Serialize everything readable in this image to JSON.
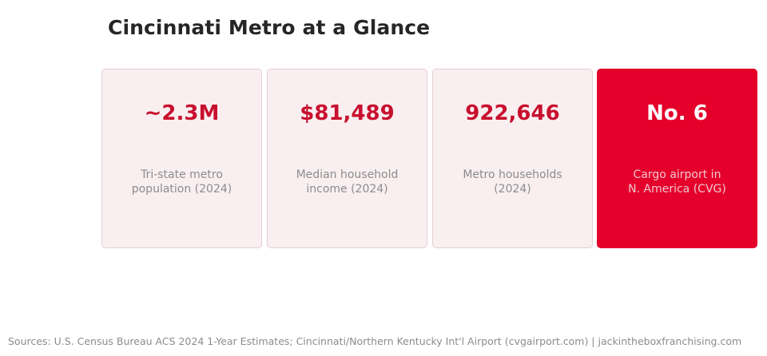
{
  "title": "Cincinnati Metro at a Glance",
  "cards": [
    {
      "value": "~2.3M",
      "label_lines": [
        "Tri-state metro",
        "population (2024)"
      ]
    },
    {
      "value": "$81,489",
      "label_lines": [
        "Median household",
        "income (2024)"
      ]
    },
    {
      "value": "922,646",
      "label_lines": [
        "Metro households",
        "(2024)"
      ]
    },
    {
      "value": "No. 6",
      "label_lines": [
        "Cargo airport in",
        "N. America (CVG)"
      ]
    }
  ],
  "footer": "Sources: U.S. Census Bureau ACS 2024 1-Year Estimates; Cincinnati/Northern Kentucky Int'l Airport (cvgairport.com)  |  jackintheboxfranchising.com",
  "colors": {
    "accent": "#c8102e",
    "highlight_card": "#e4002b",
    "card_background": "#f9eff1",
    "card_border": "#e6cdd3",
    "title_text": "#262626",
    "muted_text": "#8c8c8c"
  }
}
